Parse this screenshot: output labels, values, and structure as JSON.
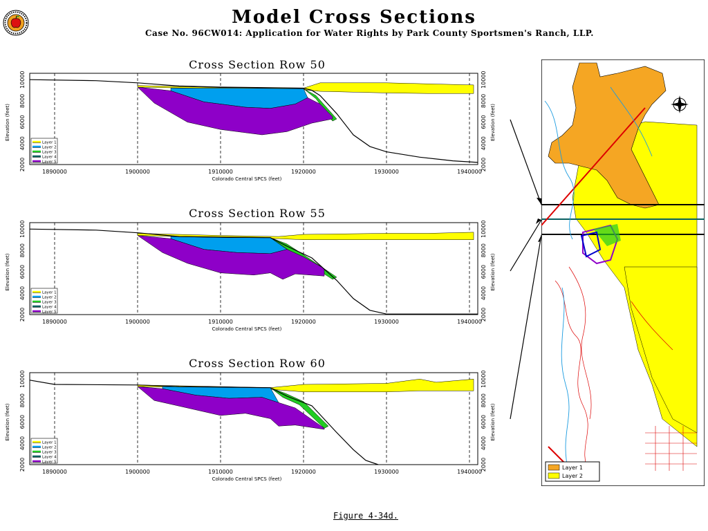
{
  "header": {
    "title": "Model Cross Sections",
    "subtitle": "Case No. 96CW014: Application for Water Rights by Park County Sportsmen's Ranch, LLP."
  },
  "footer": {
    "caption": "Figure 4-34d."
  },
  "colors": {
    "layer1": "#ffff00",
    "layer2": "#009fee",
    "layer3": "#22cc22",
    "layer4": "#0a6060",
    "layer5": "#8e00c8",
    "bedrock_line": "#000000",
    "map_orange": "#f5a623",
    "map_yellow": "#ffff00",
    "map_red": "#dd0000",
    "map_blue": "#1a9be0"
  },
  "chart_data": [
    {
      "type": "area",
      "title": "Cross Section Row 50",
      "xlabel": "Colorado Central SPCS (feet)",
      "ylabel": "Elevation (feet)",
      "ylabel_right": "Elevation (feet)",
      "xlim": [
        1887000,
        1941000
      ],
      "ylim": [
        2000,
        10600
      ],
      "xticks": [
        1890000,
        1900000,
        1910000,
        1920000,
        1930000,
        1940000
      ],
      "yticks": [
        2000,
        4000,
        6000,
        8000,
        10000
      ],
      "grid": "dashed vertical",
      "legend": {
        "position": "bottom-left",
        "entries": [
          "Layer 1",
          "Layer 2",
          "Layer 3",
          "Layer 4",
          "Layer 5"
        ]
      },
      "series": [
        {
          "name": "Layer 1",
          "color": "#ffff00",
          "top": [
            [
              1900000,
              9450
            ],
            [
              1910000,
              9250
            ],
            [
              1920000,
              9200
            ],
            [
              1922000,
              9700
            ],
            [
              1930000,
              9700
            ],
            [
              1935000,
              9600
            ],
            [
              1940500,
              9500
            ]
          ],
          "bottom": [
            [
              1900000,
              9300
            ],
            [
              1910000,
              9150
            ],
            [
              1920000,
              9050
            ],
            [
              1922000,
              8900
            ],
            [
              1930000,
              8750
            ],
            [
              1935000,
              8700
            ],
            [
              1940500,
              8700
            ]
          ]
        },
        {
          "name": "Layer 2",
          "color": "#009fee",
          "top": [
            [
              1904000,
              9200
            ],
            [
              1912000,
              9200
            ],
            [
              1920000,
              9150
            ]
          ],
          "bottom": [
            [
              1904000,
              8950
            ],
            [
              1908000,
              7900
            ],
            [
              1913000,
              7400
            ],
            [
              1916000,
              7300
            ],
            [
              1919000,
              7700
            ],
            [
              1920500,
              8300
            ],
            [
              1920000,
              9150
            ]
          ]
        },
        {
          "name": "Layer 3",
          "color": "#22cc22",
          "top": [
            [
              1920000,
              9150
            ],
            [
              1921500,
              8500
            ],
            [
              1924000,
              6300
            ]
          ],
          "bottom": [
            [
              1920000,
              9150
            ],
            [
              1921500,
              8200
            ],
            [
              1923500,
              6100
            ]
          ]
        },
        {
          "name": "Layer 5",
          "color": "#8e00c8",
          "top": [
            [
              1900000,
              9300
            ],
            [
              1904000,
              8950
            ],
            [
              1908000,
              7900
            ],
            [
              1913000,
              7400
            ],
            [
              1916000,
              7300
            ],
            [
              1919000,
              7700
            ],
            [
              1920500,
              8300
            ],
            [
              1922000,
              7700
            ],
            [
              1923500,
              6500
            ]
          ],
          "bottom": [
            [
              1900000,
              9300
            ],
            [
              1902000,
              7800
            ],
            [
              1906000,
              6000
            ],
            [
              1910000,
              5300
            ],
            [
              1915000,
              4800
            ],
            [
              1918000,
              5100
            ],
            [
              1921000,
              5900
            ],
            [
              1923500,
              6300
            ]
          ]
        }
      ],
      "bedrock": [
        [
          1887000,
          10000
        ],
        [
          1895000,
          9900
        ],
        [
          1900000,
          9700
        ],
        [
          1905000,
          9400
        ],
        [
          1910000,
          9300
        ],
        [
          1920000,
          9200
        ],
        [
          1921000,
          9000
        ],
        [
          1922000,
          8500
        ],
        [
          1924000,
          6800
        ],
        [
          1926000,
          4800
        ],
        [
          1928000,
          3700
        ],
        [
          1930000,
          3200
        ],
        [
          1934000,
          2700
        ],
        [
          1938000,
          2350
        ],
        [
          1941000,
          2200
        ]
      ]
    },
    {
      "type": "area",
      "title": "Cross Section Row 55",
      "xlabel": "Colorado Central SPCS (feet)",
      "ylabel": "Elevation (feet)",
      "ylabel_right": "Elevation (feet)",
      "xlim": [
        1887000,
        1941000
      ],
      "ylim": [
        2000,
        10600
      ],
      "xticks": [
        1890000,
        1900000,
        1910000,
        1920000,
        1930000,
        1940000
      ],
      "yticks": [
        2000,
        4000,
        6000,
        8000,
        10000
      ],
      "grid": "dashed vertical",
      "legend": {
        "position": "bottom-left",
        "entries": [
          "Layer 1",
          "Layer 2",
          "Layer 3",
          "Layer 4",
          "Layer 5"
        ]
      },
      "series": [
        {
          "name": "Layer 1",
          "color": "#ffff00",
          "top": [
            [
              1900000,
              9600
            ],
            [
              1910000,
              9400
            ],
            [
              1917000,
              9300
            ],
            [
              1920000,
              9500
            ],
            [
              1930000,
              9600
            ],
            [
              1935000,
              9600
            ],
            [
              1940500,
              9700
            ]
          ],
          "bottom": [
            [
              1900000,
              9400
            ],
            [
              1910000,
              9200
            ],
            [
              1917000,
              9100
            ],
            [
              1920000,
              9000
            ],
            [
              1930000,
              9000
            ],
            [
              1935000,
              9000
            ],
            [
              1940500,
              9000
            ]
          ]
        },
        {
          "name": "Layer 2",
          "color": "#009fee",
          "top": [
            [
              1904000,
              9300
            ],
            [
              1911000,
              9200
            ],
            [
              1916000,
              9200
            ]
          ],
          "bottom": [
            [
              1904000,
              9100
            ],
            [
              1908000,
              8100
            ],
            [
              1912000,
              7800
            ],
            [
              1916000,
              7700
            ],
            [
              1918000,
              8100
            ],
            [
              1916000,
              9200
            ]
          ]
        },
        {
          "name": "Layer 3",
          "color": "#22cc22",
          "top": [
            [
              1916000,
              9200
            ],
            [
              1918000,
              8600
            ],
            [
              1920000,
              7600
            ],
            [
              1924000,
              5500
            ]
          ],
          "bottom": [
            [
              1916000,
              9200
            ],
            [
              1917500,
              8400
            ],
            [
              1919500,
              7300
            ],
            [
              1923500,
              5300
            ]
          ]
        },
        {
          "name": "Layer 5",
          "color": "#8e00c8",
          "top": [
            [
              1900000,
              9400
            ],
            [
              1904000,
              9100
            ],
            [
              1908000,
              8100
            ],
            [
              1912000,
              7800
            ],
            [
              1916000,
              7700
            ],
            [
              1918000,
              8100
            ],
            [
              1920000,
              7400
            ],
            [
              1922500,
              6300
            ]
          ],
          "bottom": [
            [
              1900000,
              9400
            ],
            [
              1903000,
              7800
            ],
            [
              1906000,
              6800
            ],
            [
              1910000,
              5900
            ],
            [
              1914000,
              5700
            ],
            [
              1916000,
              5900
            ],
            [
              1917500,
              5300
            ],
            [
              1919000,
              5800
            ],
            [
              1922500,
              5600
            ]
          ]
        }
      ],
      "bedrock": [
        [
          1887000,
          10000
        ],
        [
          1895000,
          9900
        ],
        [
          1900000,
          9650
        ],
        [
          1905000,
          9300
        ],
        [
          1910000,
          9250
        ],
        [
          1916000,
          9200
        ],
        [
          1918000,
          8400
        ],
        [
          1921000,
          7300
        ],
        [
          1924000,
          5200
        ],
        [
          1926000,
          3500
        ],
        [
          1928000,
          2400
        ],
        [
          1930000,
          2050
        ],
        [
          1935000,
          2050
        ],
        [
          1941000,
          2050
        ]
      ]
    },
    {
      "type": "area",
      "title": "Cross Section Row 60",
      "xlabel": "Colorado Central SPCS (feet)",
      "ylabel": "Elevation (feet)",
      "ylabel_right": "Elevation (feet)",
      "xlim": [
        1887000,
        1941000
      ],
      "ylim": [
        2000,
        10600
      ],
      "xticks": [
        1890000,
        1900000,
        1910000,
        1920000,
        1930000,
        1940000
      ],
      "yticks": [
        2000,
        4000,
        6000,
        8000,
        10000
      ],
      "grid": "dashed vertical",
      "legend": {
        "position": "bottom-left",
        "entries": [
          "Layer 1",
          "Layer 2",
          "Layer 3",
          "Layer 4",
          "Layer 5"
        ]
      },
      "series": [
        {
          "name": "Layer 1",
          "color": "#ffff00",
          "top": [
            [
              1900000,
              9450
            ],
            [
              1910000,
              9300
            ],
            [
              1916000,
              9200
            ],
            [
              1920000,
              9500
            ],
            [
              1930000,
              9600
            ],
            [
              1934000,
              10000
            ],
            [
              1936000,
              9700
            ],
            [
              1940500,
              10000
            ]
          ],
          "bottom": [
            [
              1900000,
              9300
            ],
            [
              1910000,
              9150
            ],
            [
              1916000,
              9050
            ],
            [
              1920000,
              8800
            ],
            [
              1930000,
              8800
            ],
            [
              1934000,
              8900
            ],
            [
              1936000,
              8900
            ],
            [
              1940500,
              8900
            ]
          ]
        },
        {
          "name": "Layer 2",
          "color": "#009fee",
          "top": [
            [
              1903000,
              9300
            ],
            [
              1910000,
              9250
            ],
            [
              1916000,
              9200
            ]
          ],
          "bottom": [
            [
              1903000,
              9100
            ],
            [
              1907000,
              8500
            ],
            [
              1911000,
              8200
            ],
            [
              1915000,
              8300
            ],
            [
              1917000,
              7800
            ],
            [
              1916000,
              9200
            ]
          ]
        },
        {
          "name": "Layer 3",
          "color": "#22cc22",
          "top": [
            [
              1916000,
              9200
            ],
            [
              1918000,
              8600
            ],
            [
              1920000,
              7900
            ],
            [
              1923000,
              5600
            ]
          ],
          "bottom": [
            [
              1916000,
              9200
            ],
            [
              1917500,
              8300
            ],
            [
              1919500,
              7600
            ],
            [
              1922500,
              5400
            ]
          ]
        },
        {
          "name": "Layer 5",
          "color": "#8e00c8",
          "top": [
            [
              1900000,
              9300
            ],
            [
              1903000,
              9100
            ],
            [
              1907000,
              8500
            ],
            [
              1911000,
              8200
            ],
            [
              1915000,
              8300
            ],
            [
              1917000,
              7800
            ],
            [
              1919000,
              7300
            ],
            [
              1922500,
              5400
            ]
          ],
          "bottom": [
            [
              1900000,
              9300
            ],
            [
              1902000,
              8000
            ],
            [
              1906000,
              7300
            ],
            [
              1910000,
              6600
            ],
            [
              1913000,
              6800
            ],
            [
              1916000,
              6300
            ],
            [
              1917000,
              5600
            ],
            [
              1919000,
              5700
            ],
            [
              1922500,
              5300
            ]
          ]
        }
      ],
      "bedrock": [
        [
          1887000,
          9900
        ],
        [
          1890000,
          9500
        ],
        [
          1900000,
          9450
        ],
        [
          1905000,
          9300
        ],
        [
          1910000,
          9250
        ],
        [
          1916000,
          9200
        ],
        [
          1918000,
          8400
        ],
        [
          1921000,
          7500
        ],
        [
          1924000,
          5000
        ],
        [
          1926000,
          3400
        ],
        [
          1927500,
          2400
        ],
        [
          1929000,
          2000
        ]
      ]
    }
  ],
  "map": {
    "legend": [
      "Layer 1",
      "Layer 2"
    ],
    "colors": {
      "layer1": "#f5a623",
      "layer2": "#ffff00"
    }
  }
}
